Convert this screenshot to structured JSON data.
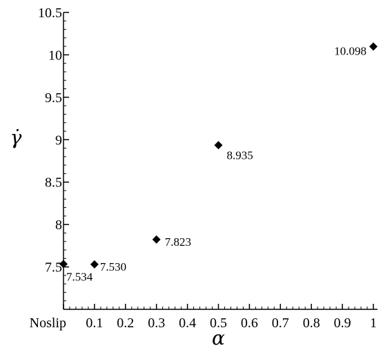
{
  "chart_data": {
    "type": "scatter",
    "title": "",
    "xlabel": "α",
    "ylabel": "γ̇",
    "xlim": [
      0,
      1
    ],
    "ylim": [
      7,
      10.5
    ],
    "x_ticks": [
      {
        "value": 0,
        "label": "Noslip"
      },
      {
        "value": 0.1,
        "label": "0.1"
      },
      {
        "value": 0.2,
        "label": "0.2"
      },
      {
        "value": 0.3,
        "label": "0.3"
      },
      {
        "value": 0.4,
        "label": "0.4"
      },
      {
        "value": 0.5,
        "label": "0.5"
      },
      {
        "value": 0.6,
        "label": "0.6"
      },
      {
        "value": 0.7,
        "label": "0.7"
      },
      {
        "value": 0.8,
        "label": "0.8"
      },
      {
        "value": 0.9,
        "label": "0.9"
      },
      {
        "value": 1,
        "label": "1"
      }
    ],
    "y_ticks": [
      {
        "value": 7.5,
        "label": "7.5"
      },
      {
        "value": 8,
        "label": "8"
      },
      {
        "value": 8.5,
        "label": "8.5"
      },
      {
        "value": 9,
        "label": "9"
      },
      {
        "value": 9.5,
        "label": "9.5"
      },
      {
        "value": 10,
        "label": "10"
      },
      {
        "value": 10.5,
        "label": "10.5"
      }
    ],
    "marker": "diamond",
    "points": [
      {
        "x": 0,
        "y": 7.534,
        "label": "7.534"
      },
      {
        "x": 0.1,
        "y": 7.53,
        "label": "7.530"
      },
      {
        "x": 0.3,
        "y": 7.823,
        "label": "7.823"
      },
      {
        "x": 0.5,
        "y": 8.935,
        "label": "8.935"
      },
      {
        "x": 1,
        "y": 10.098,
        "label": "10.098"
      }
    ],
    "grid": false,
    "colors": {
      "marker": "#000000",
      "axis": "#000000"
    }
  }
}
